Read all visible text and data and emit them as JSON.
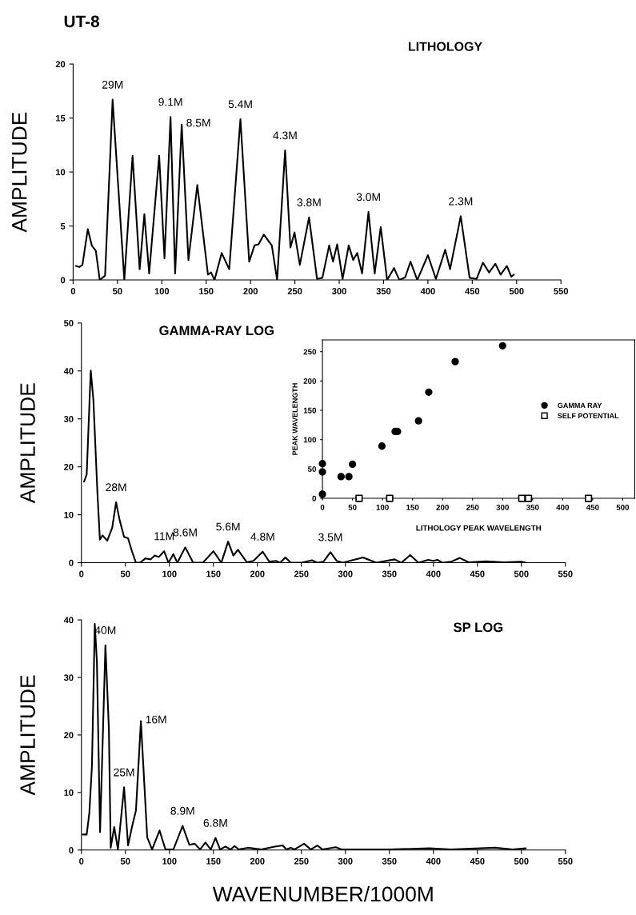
{
  "chart_data": [
    {
      "type": "line",
      "title": "UT-8",
      "subtitle": "LITHOLOGY",
      "ylabel": "AMPLITUDE",
      "xlim": [
        0,
        550
      ],
      "xticks": [
        0,
        50,
        100,
        150,
        200,
        250,
        300,
        350,
        400,
        450,
        500,
        550
      ],
      "ylim": [
        0,
        20
      ],
      "yticks": [
        0,
        5,
        10,
        15,
        20
      ],
      "grid": false,
      "marker": "none",
      "line_style": "solid",
      "series": [
        {
          "color": "#000000",
          "x": [
            3,
            7,
            10.5,
            16.5,
            21,
            25.6,
            30,
            36,
            44.5,
            57.7,
            67,
            75,
            80.3,
            85.7,
            97,
            103,
            109.8,
            115,
            122.4,
            130,
            140,
            152,
            155.5,
            159.4,
            167.5,
            176,
            188.6,
            198.5,
            204.5,
            209,
            215,
            224,
            230,
            239,
            245,
            249.6,
            255.6,
            266,
            275,
            281,
            288.7,
            293,
            297.7,
            303.8,
            310.7,
            315.8,
            320.3,
            325.8,
            333,
            340,
            346.8,
            354,
            361.8,
            367.8,
            374.4,
            380.4,
            388,
            400,
            409,
            419.5,
            425,
            437,
            447,
            455,
            462,
            469,
            476,
            482,
            489,
            494,
            497
          ],
          "values": [
            1.3,
            1.2,
            1.4,
            4.7,
            3.2,
            2.7,
            0,
            0.4,
            16.7,
            0,
            11.5,
            1.0,
            6.1,
            0.6,
            11.5,
            2.0,
            15.1,
            0.6,
            14.4,
            1.85,
            8.8,
            0.5,
            0.7,
            0,
            2.5,
            1.0,
            14.9,
            1.7,
            3.2,
            3.3,
            4.2,
            3.2,
            0,
            12.0,
            3.0,
            4.4,
            1.4,
            5.8,
            0.1,
            0.2,
            3.2,
            1.7,
            3.3,
            0.1,
            3.2,
            1.85,
            2.5,
            0.6,
            6.3,
            0.6,
            4.9,
            0,
            1.1,
            0,
            0.25,
            1.7,
            0,
            2.3,
            0.1,
            2.8,
            1.0,
            5.9,
            0.2,
            0.1,
            1.6,
            0.7,
            1.5,
            0.5,
            1.3,
            0.3,
            0.5
          ]
        }
      ],
      "annotations": [
        {
          "text": "29M",
          "x": 44.5,
          "y": 16.7
        },
        {
          "text": "9.1M",
          "x": 109.8,
          "y": 15.1
        },
        {
          "text": "8.5M",
          "x": 122.4,
          "y": 14.4
        },
        {
          "text": "5.4M",
          "x": 188.6,
          "y": 14.9
        },
        {
          "text": "4.3M",
          "x": 239,
          "y": 12.0
        },
        {
          "text": "3.8M",
          "x": 266,
          "y": 5.8
        },
        {
          "text": "3.0M",
          "x": 333,
          "y": 6.3
        },
        {
          "text": "2.3M",
          "x": 437,
          "y": 5.9
        }
      ]
    },
    {
      "type": "line",
      "title": "GAMMA-RAY LOG",
      "ylabel": "AMPLITUDE",
      "xlim": [
        0,
        550
      ],
      "xticks": [
        0,
        50,
        100,
        150,
        200,
        250,
        300,
        350,
        400,
        450,
        500,
        550
      ],
      "ylim": [
        0,
        50
      ],
      "yticks": [
        0,
        10,
        20,
        30,
        40,
        50
      ],
      "grid": false,
      "marker": "none",
      "line_style": "solid",
      "series": [
        {
          "color": "#000000",
          "x": [
            3,
            6,
            10.6,
            13.6,
            18.2,
            21,
            24,
            29.4,
            35,
            39.4,
            43.3,
            48.5,
            53,
            57.6,
            62,
            66.7,
            72.7,
            78.8,
            83.3,
            87.9,
            94,
            99,
            104.5,
            109,
            118,
            127,
            138,
            150,
            159,
            166.7,
            172.7,
            177.9,
            187.9,
            195.5,
            206,
            213.6,
            221,
            225.8,
            231.8,
            237.9,
            250,
            262,
            268,
            275,
            283,
            290,
            297,
            320,
            335,
            356,
            363.6,
            373.6,
            383,
            394,
            400,
            404.5,
            410.5,
            420,
            430,
            440,
            460,
            480,
            500,
            505
          ],
          "values": [
            16.9,
            18.4,
            40.1,
            34,
            14.6,
            4.8,
            5.7,
            4.6,
            7.3,
            12.6,
            9,
            5.4,
            5.1,
            2.3,
            0,
            0,
            0.9,
            0.7,
            1.5,
            1.2,
            2.4,
            0,
            1.8,
            0,
            3.2,
            0,
            0,
            2.4,
            0,
            4.4,
            1.5,
            2.7,
            0.1,
            0.4,
            2.3,
            0.2,
            0.4,
            0,
            1.1,
            0,
            0,
            0.5,
            0,
            0.2,
            2.2,
            0.4,
            0,
            1.1,
            0,
            0.7,
            0,
            1.6,
            0,
            0.6,
            0.4,
            0.6,
            0,
            0.2,
            1.0,
            0.1,
            0.3,
            0.1,
            0.2,
            0
          ]
        }
      ],
      "annotations": [
        {
          "text": "28M",
          "x": 39.4,
          "y": 12.6
        },
        {
          "text": "11M",
          "x": 94,
          "y": 2.4
        },
        {
          "text": "8.6M",
          "x": 118,
          "y": 3.2
        },
        {
          "text": "5.6M",
          "x": 166.7,
          "y": 4.4
        },
        {
          "text": "4.8M",
          "x": 206,
          "y": 2.3
        },
        {
          "text": "3.5M",
          "x": 283,
          "y": 2.2
        }
      ]
    },
    {
      "type": "line",
      "title": "SP LOG",
      "ylabel": "AMPLITUDE",
      "xlabel": "WAVENUMBER/1000M",
      "xlim": [
        0,
        550
      ],
      "xticks": [
        0,
        50,
        100,
        150,
        200,
        250,
        300,
        350,
        400,
        450,
        500,
        550
      ],
      "ylim": [
        0,
        40
      ],
      "yticks": [
        0,
        10,
        20,
        30,
        40
      ],
      "grid": false,
      "marker": "none",
      "line_style": "solid",
      "series": [
        {
          "color": "#000000",
          "x": [
            1.5,
            6,
            9,
            12,
            15.2,
            17.6,
            21.2,
            27.3,
            31.2,
            33.3,
            37.3,
            41.5,
            48.5,
            53,
            57.6,
            62,
            67.6,
            74.8,
            80.3,
            88.8,
            95.5,
            104.5,
            115,
            122.7,
            128.8,
            134.8,
            141,
            147,
            152.4,
            157.6,
            163.6,
            169.7,
            174,
            178.8,
            189,
            204.5,
            219.7,
            228.8,
            233,
            237.9,
            242,
            253,
            260.6,
            268,
            274,
            289,
            295.5,
            350,
            395,
            420,
            470,
            490,
            505
          ],
          "values": [
            2.7,
            2.7,
            6.4,
            14.7,
            39.3,
            32.8,
            3.1,
            35.6,
            21.2,
            0.4,
            4.0,
            0.1,
            10.9,
            0.8,
            4.1,
            6.9,
            22.4,
            2.2,
            0.1,
            3.4,
            0.1,
            0.1,
            4.2,
            0.9,
            1.1,
            0.1,
            1.3,
            0.1,
            2.1,
            0.1,
            0.6,
            0.1,
            0.7,
            0.1,
            0.4,
            0.1,
            0.6,
            0.8,
            0.1,
            0.4,
            0.1,
            1.1,
            0.1,
            0.8,
            0.1,
            0.5,
            0.1,
            0.1,
            0.3,
            0.1,
            0.4,
            0.1,
            0.3
          ]
        }
      ],
      "annotations": [
        {
          "text": "40M",
          "x": 27.3,
          "y": 35.6
        },
        {
          "text": "25M",
          "x": 48.5,
          "y": 10.9
        },
        {
          "text": "16M",
          "x": 67.6,
          "y": 22.4
        },
        {
          "text": "8.9M",
          "x": 115,
          "y": 4.2
        },
        {
          "text": "6.8M",
          "x": 152.4,
          "y": 2.1
        }
      ]
    },
    {
      "type": "scatter",
      "xlabel": "LITHOLOGY PEAK WAVELENGTH",
      "ylabel": "PEAK WAVELENGTH",
      "xlim": [
        0,
        520
      ],
      "xticks": [
        0,
        50,
        100,
        150,
        200,
        250,
        300,
        350,
        400,
        450,
        500
      ],
      "ylim": [
        0,
        270
      ],
      "yticks": [
        0,
        50,
        100,
        150,
        200,
        250
      ],
      "grid": false,
      "legend": "right",
      "series": [
        {
          "name": "GAMMA RAY",
          "color": "#000000",
          "marker": "circle",
          "x": [
            0,
            0,
            0,
            31,
            44,
            50,
            99,
            121,
            125,
            160,
            177,
            221,
            300
          ],
          "values": [
            7,
            45,
            59,
            37,
            37,
            58,
            89,
            114,
            114,
            132,
            181,
            233,
            260
          ]
        },
        {
          "name": "SELF POTENTIAL",
          "color": "#000000",
          "marker": "square",
          "x": [
            61,
            112,
            332,
            343,
            443
          ],
          "values": [
            0,
            0,
            0,
            0,
            0
          ]
        }
      ]
    }
  ]
}
